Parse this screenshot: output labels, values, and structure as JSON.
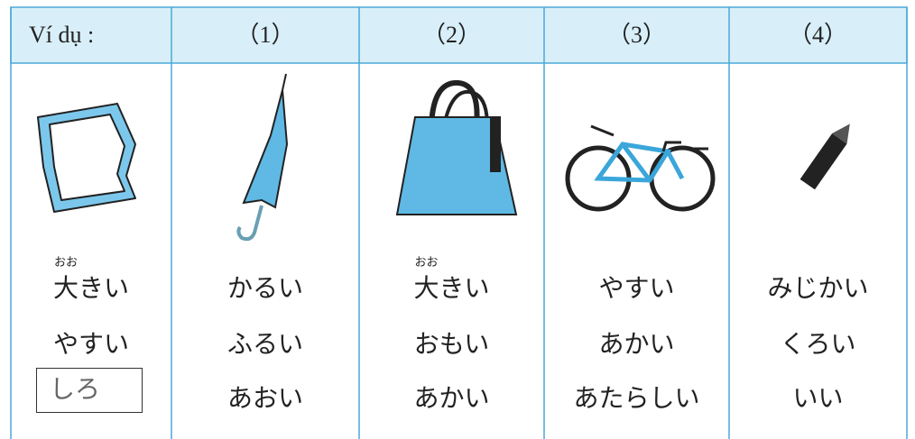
{
  "table": {
    "header": [
      "Ví dụ :",
      "（1）",
      "（2）",
      "（3）",
      "（4）"
    ],
    "columns": [
      {
        "words": [
          {
            "ruby": "おお",
            "base": "大",
            "rest": "きい"
          },
          "やすい"
        ],
        "answer": "しろ"
      },
      {
        "words": [
          "かるい",
          "ふるい",
          "あおい"
        ]
      },
      {
        "words": [
          {
            "ruby": "おお",
            "base": "大",
            "rest": "きい"
          },
          "おもい",
          "あかい"
        ]
      },
      {
        "words": [
          "やすい",
          "あかい",
          "あたらしい"
        ]
      },
      {
        "words": [
          "みじかい",
          "くろい",
          "いい"
        ]
      }
    ]
  }
}
